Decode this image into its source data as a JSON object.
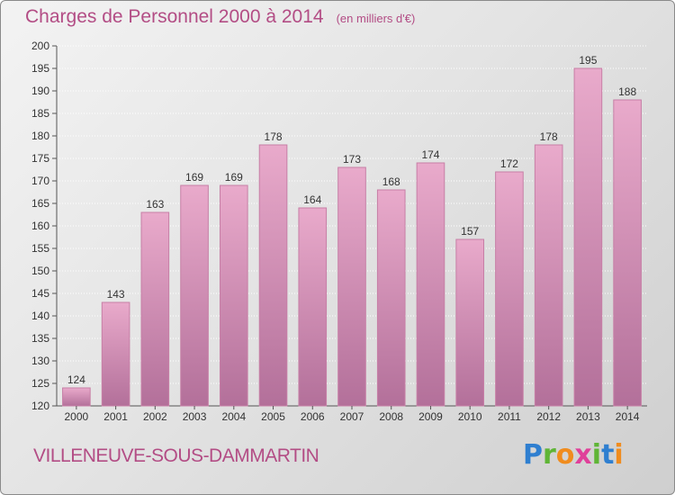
{
  "title": "Charges de Personnel 2000 à 2014",
  "unit_note": "(en milliers d'€)",
  "commune": "VILLENEUVE-SOUS-DAMMARTIN",
  "brand": {
    "letters": [
      "P",
      "r",
      "o",
      "x",
      "i",
      "t",
      "i"
    ],
    "colors": [
      "#2f7fd0",
      "#5fb536",
      "#f08c1e",
      "#e0409a",
      "#5fb536",
      "#2f7fd0",
      "#f08c1e"
    ]
  },
  "colors": {
    "title": "#b34d85",
    "bar_top": "#e9aacb",
    "bar_bottom": "#b3709a",
    "bar_edge": "#c77fa6"
  },
  "chart_data": {
    "type": "bar",
    "categories": [
      "2000",
      "2001",
      "2002",
      "2003",
      "2004",
      "2005",
      "2006",
      "2007",
      "2008",
      "2009",
      "2010",
      "2011",
      "2012",
      "2013",
      "2014"
    ],
    "values": [
      124,
      143,
      163,
      169,
      169,
      178,
      164,
      173,
      168,
      174,
      157,
      172,
      178,
      195,
      188
    ],
    "data_labels": [
      "124",
      "143",
      "163",
      "169",
      "169",
      "178",
      "164",
      "173",
      "168",
      "174",
      "157",
      "172",
      "178",
      "195",
      "188"
    ],
    "yticks": [
      "120",
      "125",
      "130",
      "135",
      "140",
      "145",
      "150",
      "155",
      "160",
      "165",
      "170",
      "175",
      "180",
      "185",
      "190",
      "195",
      "200"
    ],
    "ylim": [
      120,
      200
    ],
    "grid": true,
    "legend": "none"
  }
}
